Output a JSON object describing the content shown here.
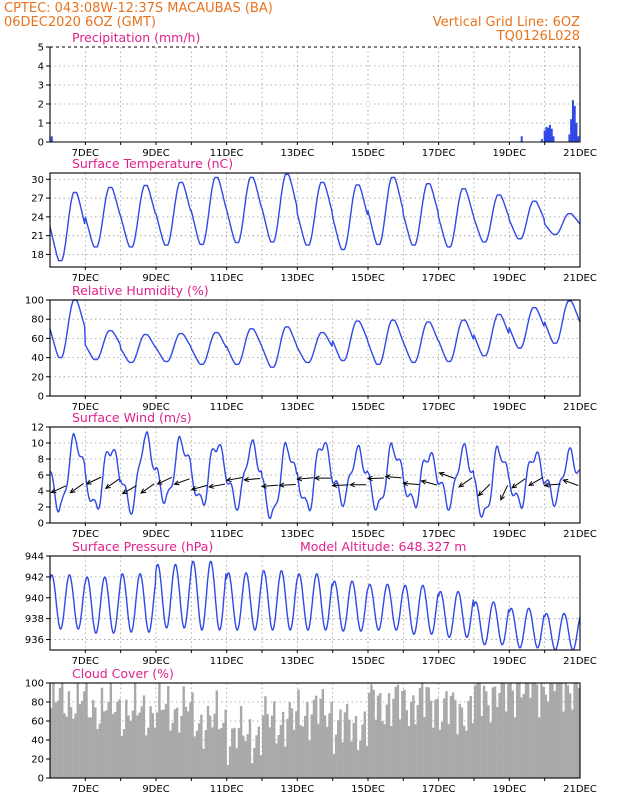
{
  "header": {
    "line1_left": "CPTEC:   043:08W-12:37S   MACAUBAS (BA)",
    "line2_left": "06DEC2020 6OZ (GMT)",
    "line1_right": "Vertical Grid Line: 6OZ",
    "line2_right": "TQ0126L028"
  },
  "colors": {
    "header": "#e8731e",
    "panel_title": "#e0208c",
    "series_line": "#2f48e6",
    "cloud_bars": "#a9a9a9",
    "grid": "#9a9a9a"
  },
  "chart_data": [
    {
      "id": "precip",
      "type": "bar",
      "title": "Precipitation (mm/h)",
      "x_ticks": [
        "7DEC",
        "9DEC",
        "11DEC",
        "13DEC",
        "15DEC",
        "17DEC",
        "19DEC",
        "21DEC"
      ],
      "xlim_days": [
        6.0,
        21.0
      ],
      "ylim": [
        0,
        5
      ],
      "y_ticks": [
        0,
        1,
        2,
        3,
        4,
        5
      ],
      "bars": [
        {
          "day": 6.05,
          "v": 0.3
        },
        {
          "day": 19.35,
          "v": 0.3
        },
        {
          "day": 19.92,
          "v": 0.15
        },
        {
          "day": 20.0,
          "v": 0.6
        },
        {
          "day": 20.05,
          "v": 0.8
        },
        {
          "day": 20.1,
          "v": 0.75
        },
        {
          "day": 20.15,
          "v": 0.9
        },
        {
          "day": 20.2,
          "v": 0.7
        },
        {
          "day": 20.25,
          "v": 0.3
        },
        {
          "day": 20.7,
          "v": 0.4
        },
        {
          "day": 20.75,
          "v": 1.2
        },
        {
          "day": 20.8,
          "v": 2.2
        },
        {
          "day": 20.85,
          "v": 1.9
        },
        {
          "day": 20.9,
          "v": 1.0
        },
        {
          "day": 20.95,
          "v": 0.3
        }
      ]
    },
    {
      "id": "temp",
      "type": "line",
      "title": "Surface Temperature (nC)",
      "x_ticks": [
        "7DEC",
        "9DEC",
        "11DEC",
        "13DEC",
        "15DEC",
        "17DEC",
        "19DEC",
        "21DEC"
      ],
      "xlim_days": [
        6.0,
        21.0
      ],
      "ylim": [
        16,
        31
      ],
      "y_ticks": [
        18,
        21,
        24,
        27,
        30
      ],
      "daily_min": [
        17.0,
        19.2,
        19.2,
        19.5,
        19.6,
        19.9,
        20.0,
        19.5,
        18.8,
        19.6,
        19.5,
        19.2,
        20.0,
        20.5,
        21.2
      ],
      "daily_max": [
        27.9,
        28.7,
        29.0,
        29.5,
        30.3,
        30.3,
        30.8,
        29.5,
        29.1,
        30.3,
        29.3,
        28.5,
        27.5,
        26.5,
        24.5
      ]
    },
    {
      "id": "rh",
      "type": "line",
      "title": "Relative Humidity (%)",
      "x_ticks": [
        "7DEC",
        "9DEC",
        "11DEC",
        "13DEC",
        "15DEC",
        "17DEC",
        "19DEC",
        "21DEC"
      ],
      "xlim_days": [
        6.0,
        21.0
      ],
      "ylim": [
        0,
        100
      ],
      "y_ticks": [
        0,
        20,
        40,
        60,
        80,
        100
      ],
      "daily_min": [
        40,
        38,
        35,
        36,
        33,
        33,
        30,
        35,
        37,
        33,
        35,
        36,
        42,
        50,
        55
      ],
      "daily_max": [
        100,
        68,
        64,
        65,
        66,
        70,
        72,
        66,
        78,
        79,
        77,
        79,
        85,
        92,
        99
      ]
    },
    {
      "id": "wind",
      "type": "line",
      "title": "Surface Wind (m/s)",
      "x_ticks": [
        "7DEC",
        "9DEC",
        "11DEC",
        "13DEC",
        "15DEC",
        "17DEC",
        "19DEC",
        "21DEC"
      ],
      "xlim_days": [
        6.0,
        21.0
      ],
      "ylim": [
        0,
        12
      ],
      "y_ticks": [
        0,
        2,
        4,
        6,
        8,
        10,
        12
      ],
      "daily_min": [
        2.0,
        2.0,
        2.0,
        3.0,
        2.6,
        2.5,
        1.0,
        2.0,
        3.0,
        2.0,
        2.5,
        2.5,
        1.0,
        2.5,
        3.0
      ],
      "daily_max": [
        10.3,
        9.3,
        10.5,
        10.0,
        9.8,
        9.5,
        9.3,
        10.0,
        8.8,
        9.3,
        8.5,
        9.0,
        9.0,
        8.5,
        8.5
      ],
      "arrows": [
        {
          "day": 6.45,
          "angle_deg": 205
        },
        {
          "day": 6.95,
          "angle_deg": 215
        },
        {
          "day": 7.45,
          "angle_deg": 205
        },
        {
          "day": 7.95,
          "angle_deg": 215
        },
        {
          "day": 8.45,
          "angle_deg": 210
        },
        {
          "day": 8.95,
          "angle_deg": 215
        },
        {
          "day": 9.45,
          "angle_deg": 205
        },
        {
          "day": 9.95,
          "angle_deg": 200
        },
        {
          "day": 10.45,
          "angle_deg": 195
        },
        {
          "day": 10.95,
          "angle_deg": 190
        },
        {
          "day": 11.45,
          "angle_deg": 190
        },
        {
          "day": 11.95,
          "angle_deg": 185
        },
        {
          "day": 12.45,
          "angle_deg": 185
        },
        {
          "day": 12.95,
          "angle_deg": 183
        },
        {
          "day": 13.45,
          "angle_deg": 185
        },
        {
          "day": 13.95,
          "angle_deg": 180
        },
        {
          "day": 14.45,
          "angle_deg": 182
        },
        {
          "day": 14.95,
          "angle_deg": 180
        },
        {
          "day": 15.45,
          "angle_deg": 182
        },
        {
          "day": 15.95,
          "angle_deg": 175
        },
        {
          "day": 16.45,
          "angle_deg": 175
        },
        {
          "day": 16.95,
          "angle_deg": 165
        },
        {
          "day": 17.45,
          "angle_deg": 160
        },
        {
          "day": 17.95,
          "angle_deg": 215
        },
        {
          "day": 18.45,
          "angle_deg": 225
        },
        {
          "day": 18.95,
          "angle_deg": 245
        },
        {
          "day": 19.45,
          "angle_deg": 215
        },
        {
          "day": 19.95,
          "angle_deg": 210
        },
        {
          "day": 20.45,
          "angle_deg": 185
        },
        {
          "day": 20.95,
          "angle_deg": 160
        }
      ]
    },
    {
      "id": "pressure",
      "type": "line",
      "title": "Surface Pressure (hPa)",
      "subtitle": "Model Altitude: 648.327 m",
      "x_ticks": [
        "7DEC",
        "9DEC",
        "11DEC",
        "13DEC",
        "15DEC",
        "17DEC",
        "19DEC",
        "21DEC"
      ],
      "xlim_days": [
        6.0,
        21.0
      ],
      "ylim": [
        935.0,
        944.0
      ],
      "y_ticks": [
        936,
        938,
        940,
        942,
        944
      ],
      "daily_min": [
        937.0,
        936.6,
        936.7,
        937.1,
        936.9,
        936.9,
        936.9,
        936.9,
        936.8,
        936.9,
        936.5,
        936.2,
        935.5,
        935.2,
        935.0
      ],
      "daily_max": [
        942.2,
        942.0,
        942.3,
        943.2,
        943.5,
        942.4,
        942.6,
        942.3,
        941.6,
        941.3,
        941.2,
        940.6,
        939.6,
        939.0,
        938.5
      ]
    },
    {
      "id": "cloud",
      "type": "bar",
      "title": "Cloud Cover (%)",
      "x_ticks": [
        "7DEC",
        "9DEC",
        "11DEC",
        "13DEC",
        "15DEC",
        "17DEC",
        "19DEC",
        "21DEC"
      ],
      "xlim_days": [
        6.0,
        21.0
      ],
      "ylim": [
        0,
        100
      ],
      "y_ticks": [
        0,
        20,
        40,
        60,
        80,
        100
      ],
      "daily_level": [
        82,
        75,
        70,
        72,
        60,
        45,
        60,
        70,
        55,
        78,
        80,
        72,
        88,
        97,
        99
      ]
    }
  ]
}
